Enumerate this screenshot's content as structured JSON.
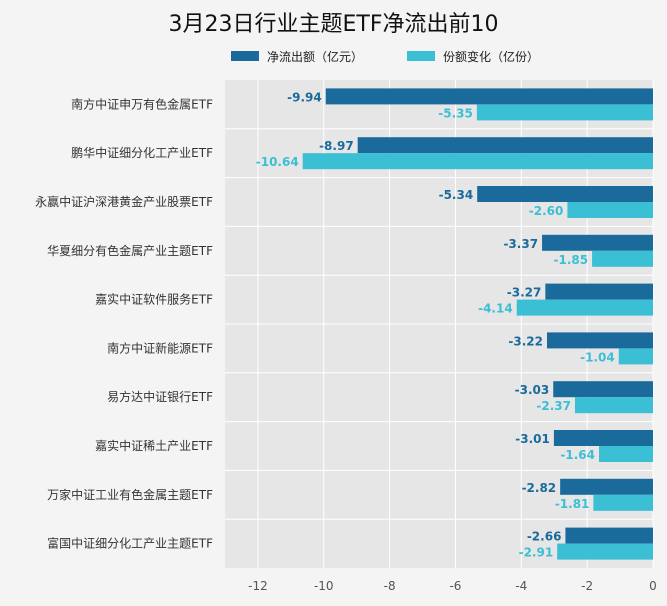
{
  "chart_data": {
    "type": "bar",
    "orientation": "horizontal",
    "title": "3月23日行业主题ETF净流出前10",
    "categories": [
      "南方中证申万有色金属ETF",
      "鹏华中证细分化工产业ETF",
      "永赢中证沪深港黄金产业股票ETF",
      "华夏细分有色金属产业主题ETF",
      "嘉实中证软件服务ETF",
      "南方中证新能源ETF",
      "易方达中证银行ETF",
      "嘉实中证稀土产业ETF",
      "万家中证工业有色金属主题ETF",
      "富国中证细分化工产业主题ETF"
    ],
    "series": [
      {
        "name": "净流出额（亿元）",
        "color": "#1a6b9c",
        "values": [
          -9.94,
          -8.97,
          -5.34,
          -3.37,
          -3.27,
          -3.22,
          -3.03,
          -3.01,
          -2.82,
          -2.66
        ],
        "labels": [
          "-9.94",
          "-8.97",
          "-5.34",
          "-3.37",
          "-3.27",
          "-3.22",
          "-3.03",
          "-3.01",
          "-2.82",
          "-2.66"
        ]
      },
      {
        "name": "份额变化（亿份）",
        "color": "#3bbfd4",
        "values": [
          -5.35,
          -10.64,
          -2.6,
          -1.85,
          -4.14,
          -1.04,
          -2.37,
          -1.64,
          -1.81,
          -2.91
        ],
        "labels": [
          "-5.35",
          "-10.64",
          "-2.60",
          "-1.85",
          "-4.14",
          "-1.04",
          "-2.37",
          "-1.64",
          "-1.81",
          "-2.91"
        ]
      }
    ],
    "x_ticks": [
      "-12",
      "-10",
      "-8",
      "-6",
      "-4",
      "-2",
      "0"
    ],
    "x_tick_values": [
      -12,
      -10,
      -8,
      -6,
      -4,
      -2,
      0
    ],
    "xlim": [
      -13,
      0
    ],
    "grid": true,
    "legend_position": "top-center"
  }
}
